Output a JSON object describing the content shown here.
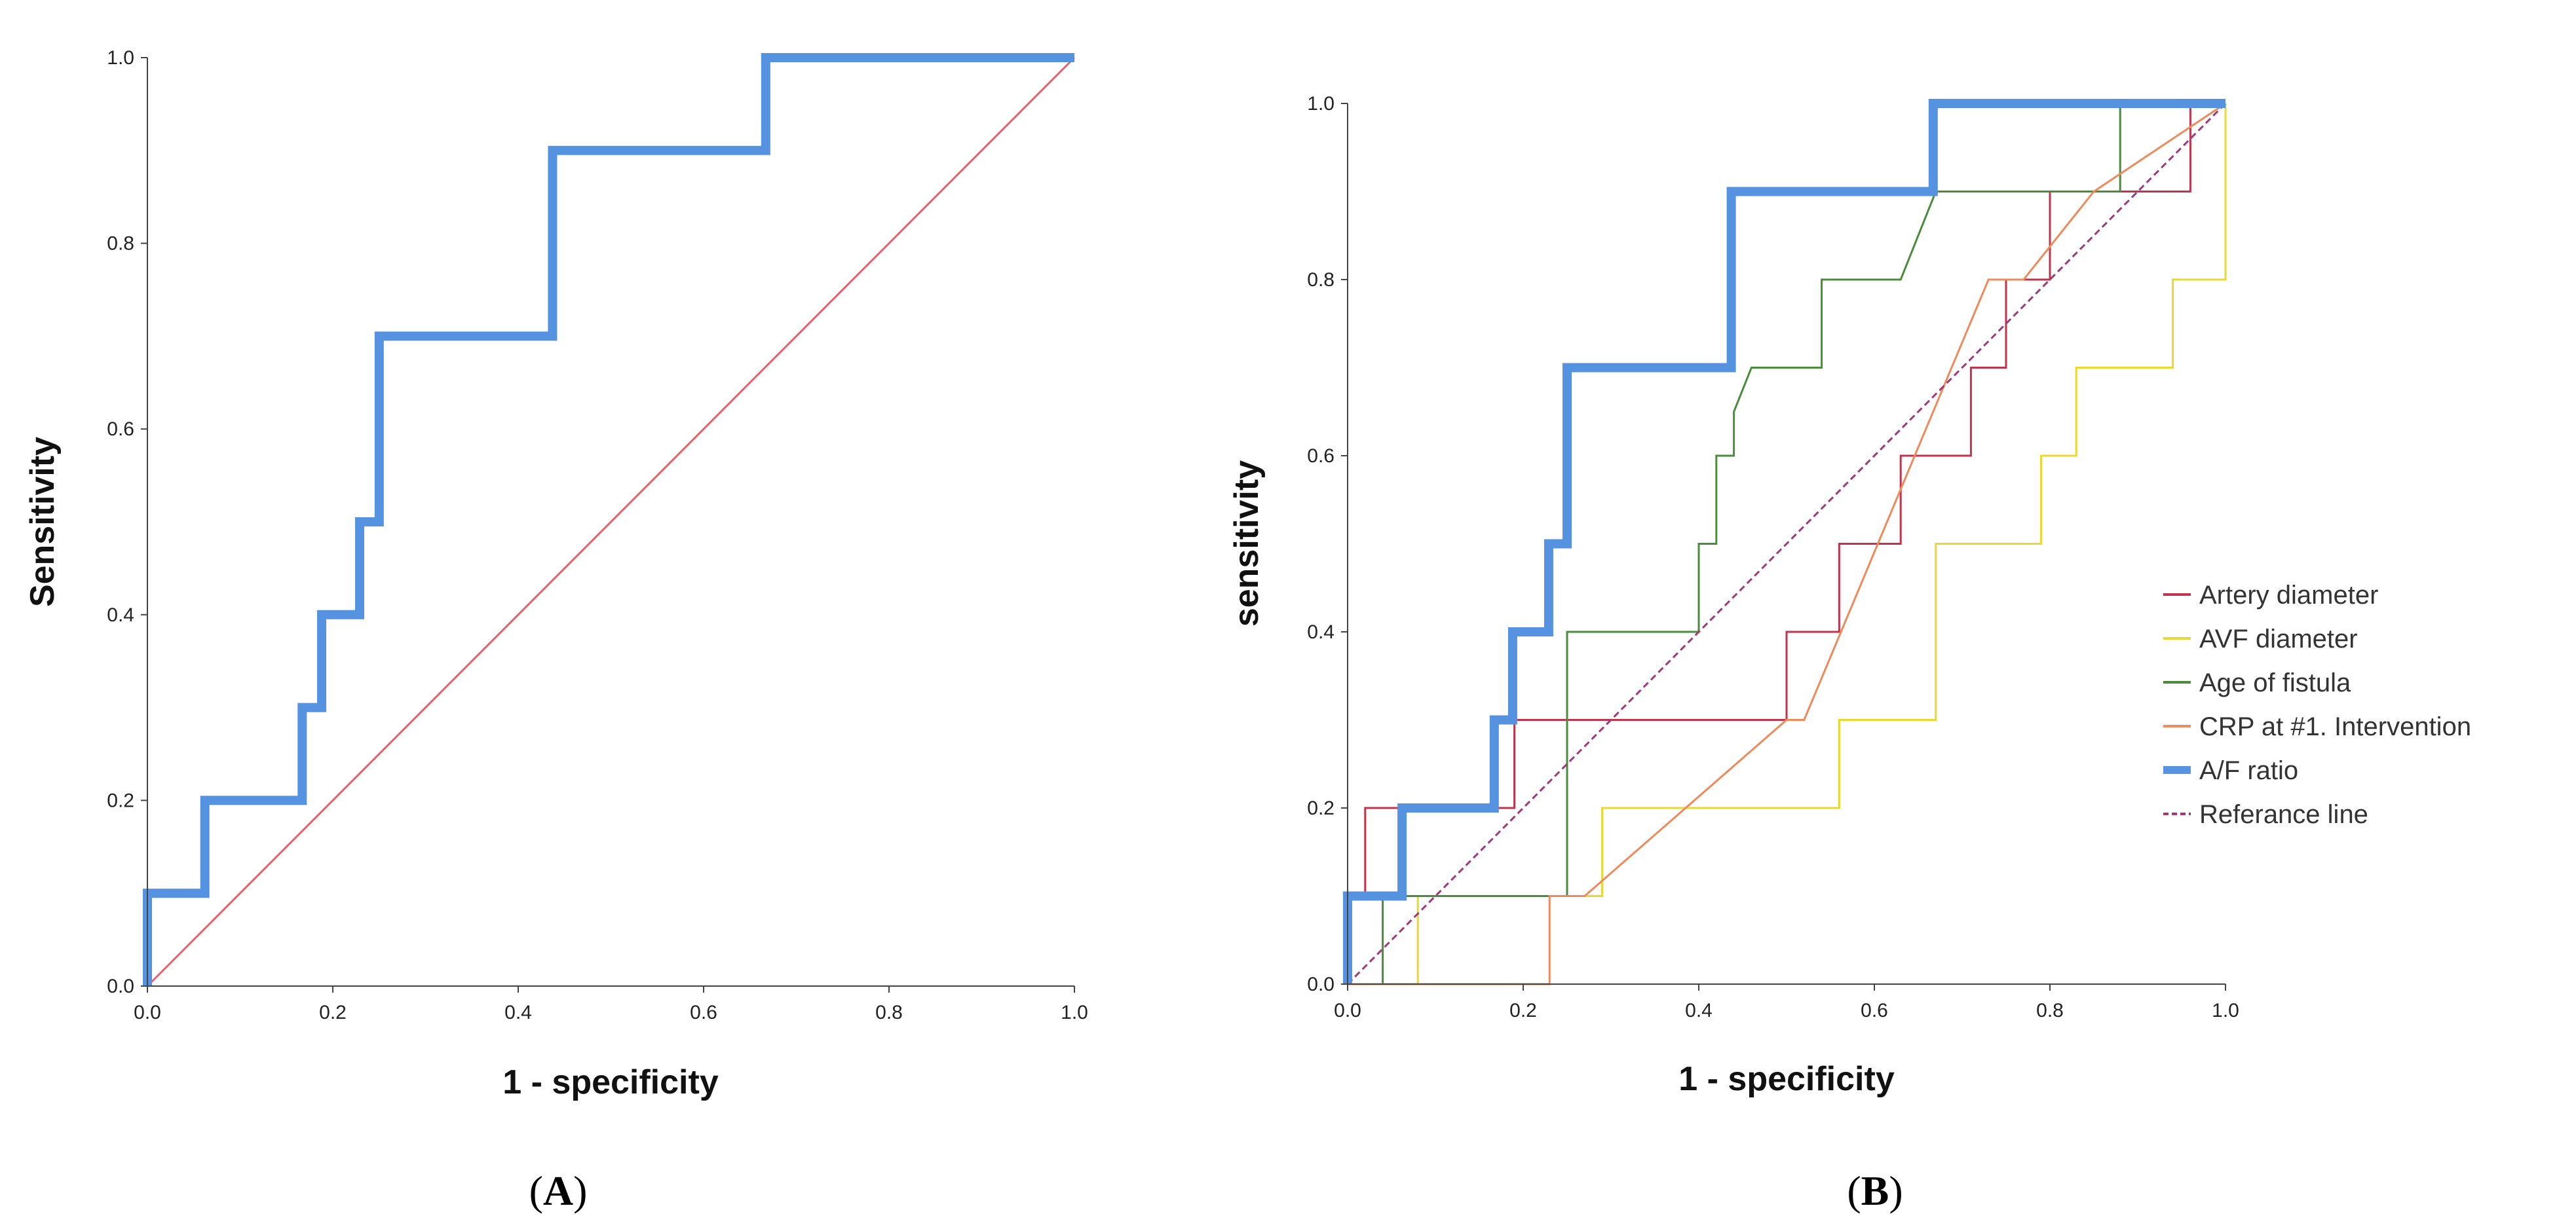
{
  "chart_data": [
    {
      "type": "line",
      "panel_label_open": "(",
      "panel_label": "A",
      "panel_label_close": ")",
      "xlabel": "1 - specificity",
      "ylabel": "Sensitivity",
      "xlim": [
        0,
        1
      ],
      "ylim": [
        0,
        1
      ],
      "xticks": [
        "0.0",
        "0.2",
        "0.4",
        "0.6",
        "0.8",
        "1.0"
      ],
      "yticks": [
        "0.0",
        "0.2",
        "0.4",
        "0.6",
        "0.8",
        "1.0"
      ],
      "series": [
        {
          "name": "A/F ratio",
          "color": "#5592e0",
          "width": "thick",
          "step": true,
          "x": [
            0,
            0,
            0.062,
            0.062,
            0.167,
            0.167,
            0.188,
            0.188,
            0.229,
            0.229,
            0.25,
            0.25,
            0.437,
            0.437,
            0.667,
            0.667,
            1.0
          ],
          "y": [
            0,
            0.1,
            0.1,
            0.2,
            0.2,
            0.3,
            0.3,
            0.4,
            0.4,
            0.5,
            0.5,
            0.7,
            0.7,
            0.9,
            0.9,
            1.0,
            1.0
          ]
        },
        {
          "name": "Reference line",
          "color": "#e8606a",
          "width": "thin",
          "x": [
            0,
            1
          ],
          "y": [
            0,
            1
          ]
        }
      ]
    },
    {
      "type": "line",
      "panel_label_open": "(",
      "panel_label": "B",
      "panel_label_close": ")",
      "xlabel": "1 - specificity",
      "ylabel": "sensitivity",
      "xlim": [
        0,
        1
      ],
      "ylim": [
        0,
        1
      ],
      "xticks": [
        "0.0",
        "0.2",
        "0.4",
        "0.6",
        "0.8",
        "1.0"
      ],
      "yticks": [
        "0.0",
        "0.2",
        "0.4",
        "0.6",
        "0.8",
        "1.0"
      ],
      "legend_position": "right",
      "series": [
        {
          "name": "Artery diameter",
          "color": "#c0344e",
          "width": "thin",
          "x": [
            0,
            0,
            0.02,
            0.02,
            0.19,
            0.19,
            0.5,
            0.5,
            0.56,
            0.56,
            0.6,
            0.6,
            0.63,
            0.63,
            0.67,
            0.67,
            0.71,
            0.71,
            0.75,
            0.75,
            0.8,
            0.8,
            0.85,
            0.85,
            0.96,
            0.96,
            1.0
          ],
          "y": [
            0,
            0.1,
            0.1,
            0.2,
            0.2,
            0.3,
            0.3,
            0.4,
            0.4,
            0.5,
            0.5,
            0.5,
            0.5,
            0.6,
            0.6,
            0.6,
            0.6,
            0.7,
            0.7,
            0.8,
            0.8,
            0.9,
            0.9,
            0.9,
            0.9,
            1.0,
            1.0
          ]
        },
        {
          "name": "AVF diameter",
          "color": "#e8d830",
          "width": "thin",
          "x": [
            0,
            0.08,
            0.08,
            0.29,
            0.29,
            0.56,
            0.56,
            0.67,
            0.67,
            0.79,
            0.79,
            0.83,
            0.83,
            0.94,
            0.94,
            0.98,
            0.98,
            1.0,
            1.0
          ],
          "y": [
            0,
            0,
            0.1,
            0.1,
            0.2,
            0.2,
            0.3,
            0.3,
            0.5,
            0.5,
            0.6,
            0.6,
            0.7,
            0.7,
            0.8,
            0.8,
            0.8,
            0.8,
            1.0
          ]
        },
        {
          "name": "Age of fistula",
          "color": "#4a8c3c",
          "width": "thin",
          "x": [
            0,
            0.04,
            0.04,
            0.25,
            0.25,
            0.4,
            0.4,
            0.42,
            0.42,
            0.44,
            0.44,
            0.46,
            0.46,
            0.54,
            0.54,
            0.63,
            0.67,
            0.88,
            0.88,
            1.0
          ],
          "y": [
            0,
            0,
            0.1,
            0.1,
            0.4,
            0.4,
            0.5,
            0.5,
            0.6,
            0.6,
            0.65,
            0.7,
            0.7,
            0.7,
            0.8,
            0.8,
            0.9,
            0.9,
            1.0,
            1.0
          ]
        },
        {
          "name": "CRP at #1. Intervention",
          "color": "#ef8a5c",
          "width": "thin",
          "x": [
            0,
            0.23,
            0.23,
            0.27,
            0.5,
            0.52,
            0.73,
            0.77,
            0.85,
            1.0
          ],
          "y": [
            0,
            0,
            0.1,
            0.1,
            0.3,
            0.3,
            0.8,
            0.8,
            0.9,
            1.0
          ]
        },
        {
          "name": "A/F ratio",
          "color": "#5592e0",
          "width": "thick",
          "x": [
            0,
            0,
            0.062,
            0.062,
            0.167,
            0.167,
            0.188,
            0.188,
            0.229,
            0.229,
            0.25,
            0.25,
            0.437,
            0.437,
            0.667,
            0.667,
            1.0
          ],
          "y": [
            0,
            0.1,
            0.1,
            0.2,
            0.2,
            0.3,
            0.3,
            0.4,
            0.4,
            0.5,
            0.5,
            0.7,
            0.7,
            0.9,
            0.9,
            1.0,
            1.0
          ]
        },
        {
          "name": "Referance line",
          "color": "#a03a78",
          "width": "dashed",
          "x": [
            0,
            1
          ],
          "y": [
            0,
            1
          ]
        }
      ]
    }
  ]
}
